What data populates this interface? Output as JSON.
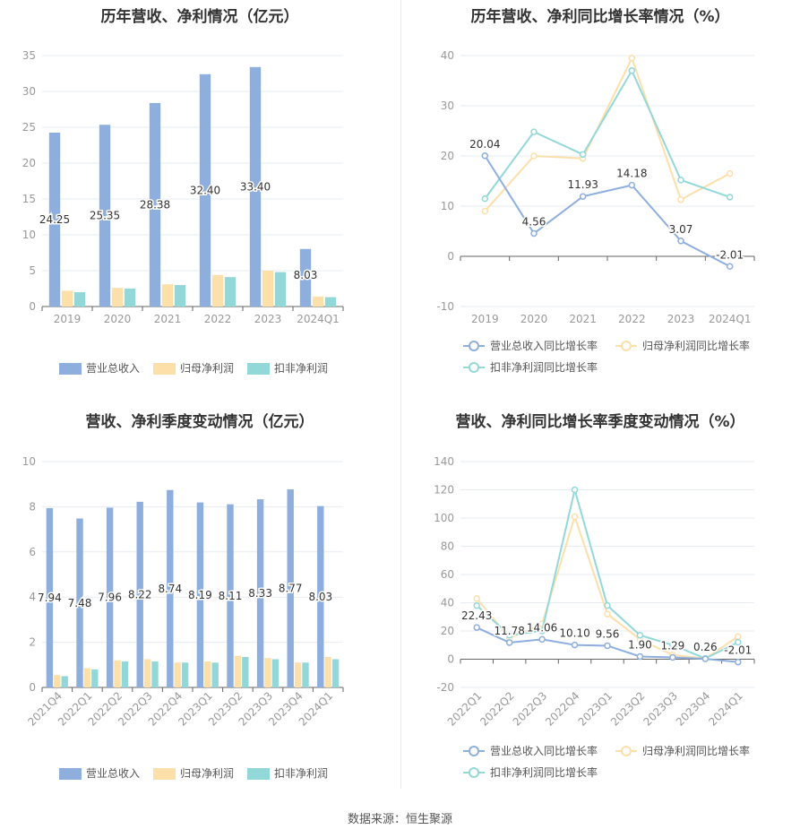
{
  "source": "数据来源：恒生聚源",
  "colors": {
    "revenue": "#8eaedd",
    "net_parent": "#fddfaa",
    "net_deducted": "#93d8d9",
    "grid": "#e7ecf2",
    "axis": "#999999",
    "label": "#333333"
  },
  "chart_data": [
    {
      "type": "bar",
      "title": "历年营收、净利情况（亿元）",
      "categories": [
        "2019",
        "2020",
        "2021",
        "2022",
        "2023",
        "2024Q1"
      ],
      "ylim": [
        0,
        35
      ],
      "yticks": [
        "0",
        "5",
        "10",
        "15",
        "20",
        "25",
        "30",
        "35"
      ],
      "series": [
        {
          "name": "营业总收入",
          "values": [
            24.25,
            25.35,
            28.38,
            32.4,
            33.4,
            8.03
          ],
          "labels": [
            "24.25",
            "25.35",
            "28.38",
            "32.40",
            "33.40",
            "8.03"
          ]
        },
        {
          "name": "归母净利润",
          "values": [
            2.2,
            2.6,
            3.1,
            4.4,
            5.0,
            1.4
          ]
        },
        {
          "name": "扣非净利润",
          "values": [
            2.0,
            2.5,
            3.0,
            4.1,
            4.8,
            1.3
          ]
        }
      ],
      "legend": "bottom"
    },
    {
      "type": "line",
      "title": "历年营收、净利同比增长率情况（%）",
      "categories": [
        "2019",
        "2020",
        "2021",
        "2022",
        "2023",
        "2024Q1"
      ],
      "ylim": [
        -10,
        40
      ],
      "yticks": [
        "-10",
        "0",
        "10",
        "20",
        "30",
        "40"
      ],
      "series": [
        {
          "name": "营业总收入同比增长率",
          "values": [
            20.04,
            4.56,
            11.93,
            14.18,
            3.07,
            -2.01
          ],
          "labels": [
            "20.04",
            "4.56",
            "11.93",
            "14.18",
            "3.07",
            "-2.01"
          ]
        },
        {
          "name": "归母净利润同比增长率",
          "values": [
            9.0,
            20.0,
            19.5,
            39.5,
            11.3,
            16.5
          ]
        },
        {
          "name": "扣非净利润同比增长率",
          "values": [
            11.5,
            24.8,
            20.3,
            37.0,
            15.2,
            11.8
          ]
        }
      ],
      "legend": "bottom"
    },
    {
      "type": "bar",
      "title": "营收、净利季度变动情况（亿元）",
      "categories": [
        "2021Q4",
        "2022Q1",
        "2022Q2",
        "2022Q3",
        "2022Q4",
        "2023Q1",
        "2023Q2",
        "2023Q3",
        "2023Q4",
        "2024Q1"
      ],
      "ylim": [
        0,
        10
      ],
      "yticks": [
        "0",
        "2",
        "4",
        "6",
        "8",
        "10"
      ],
      "series": [
        {
          "name": "营业总收入",
          "values": [
            7.94,
            7.48,
            7.96,
            8.22,
            8.74,
            8.19,
            8.11,
            8.33,
            8.77,
            8.03
          ],
          "labels": [
            "7.94",
            "7.48",
            "7.96",
            "8.22",
            "8.74",
            "8.19",
            "8.11",
            "8.33",
            "8.77",
            "8.03"
          ]
        },
        {
          "name": "归母净利润",
          "values": [
            0.55,
            0.85,
            1.2,
            1.25,
            1.1,
            1.15,
            1.4,
            1.3,
            1.1,
            1.35
          ]
        },
        {
          "name": "扣非净利润",
          "values": [
            0.5,
            0.8,
            1.15,
            1.15,
            1.1,
            1.1,
            1.35,
            1.25,
            1.1,
            1.25
          ]
        }
      ],
      "legend": "bottom"
    },
    {
      "type": "line",
      "title": "营收、净利同比增长率季度变动情况（%）",
      "categories": [
        "2022Q1",
        "2022Q2",
        "2022Q3",
        "2022Q4",
        "2023Q1",
        "2023Q2",
        "2023Q3",
        "2023Q4",
        "2024Q1"
      ],
      "ylim": [
        -20,
        140
      ],
      "yticks": [
        "-20",
        "0",
        "20",
        "40",
        "60",
        "80",
        "100",
        "120",
        "140"
      ],
      "series": [
        {
          "name": "营业总收入同比增长率",
          "values": [
            22.43,
            11.78,
            14.06,
            10.1,
            9.56,
            1.9,
            1.29,
            0.26,
            -2.01
          ],
          "labels": [
            "22.43",
            "11.78",
            "14.06",
            "10.10",
            "9.56",
            "1.90",
            "1.29",
            "0.26",
            "-2.01"
          ]
        },
        {
          "name": "归母净利润同比增长率",
          "values": [
            43,
            15,
            25,
            101,
            32,
            14,
            3,
            0.5,
            16
          ]
        },
        {
          "name": "扣非净利润同比增长率",
          "values": [
            38,
            17,
            20,
            120,
            38,
            17,
            10,
            0.5,
            12
          ]
        }
      ],
      "legend": "bottom"
    }
  ]
}
